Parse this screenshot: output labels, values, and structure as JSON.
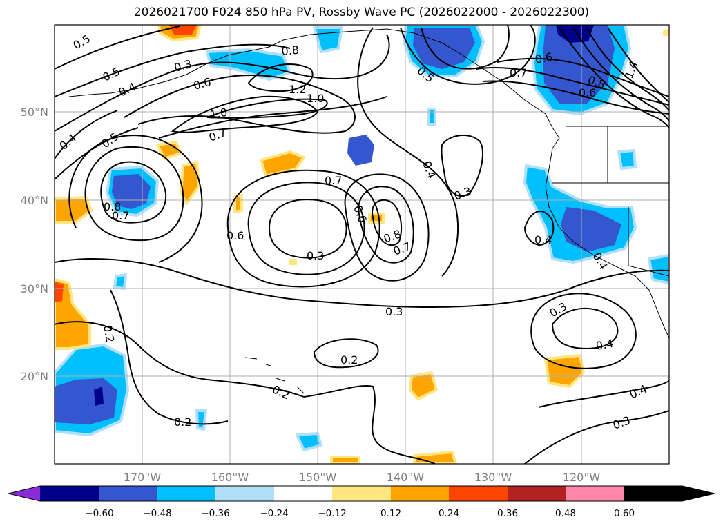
{
  "title": "2026021700 F024 850 hPa PV, Rossby Wave PC (2026022000 - 2026022300)",
  "map": {
    "lon_ticks": [
      "170°W",
      "160°W",
      "150°W",
      "140°W",
      "130°W",
      "120°W"
    ],
    "lat_ticks": [
      "50°N",
      "40°N",
      "30°N",
      "20°N"
    ]
  },
  "contour_labels": [
    "0.5",
    "0.5",
    "0.4",
    "0.3",
    "0.6",
    "0.8",
    "1.2",
    "1.0",
    "1.0",
    "0.7",
    "0.4",
    "0.5",
    "0.8",
    "0.7",
    "0.7",
    "0.6",
    "0.6",
    "0.3",
    "0.8",
    "0.7",
    "0.4",
    "0.3",
    "0.5",
    "0.7",
    "0.6",
    "0.6",
    "0.8",
    "0.4",
    "0.4",
    "0.3",
    "0.2",
    "0.2",
    "0.2",
    "0.2",
    "0.3",
    "0.4",
    "0.4",
    "0.3",
    "1.4"
  ],
  "colorbar": {
    "ticks": [
      "−0.60",
      "−0.48",
      "−0.36",
      "−0.24",
      "−0.12",
      "0.12",
      "0.24",
      "0.36",
      "0.48",
      "0.60"
    ],
    "colors": [
      "#8a2bd8",
      "#00008b",
      "#3457d0",
      "#00bfff",
      "#b0e0f8",
      "#ffffff",
      "#ffe680",
      "#ffa500",
      "#ff4500",
      "#b22222",
      "#ff88aa"
    ]
  },
  "fill_colors": {
    "neg_strong": "#00008b",
    "neg_mid": "#3457d0",
    "neg_light": "#00bfff",
    "neg_faint": "#b0e0f8",
    "pos_faint": "#ffe680",
    "pos_light": "#ffa500",
    "pos_mid": "#ff4500"
  }
}
